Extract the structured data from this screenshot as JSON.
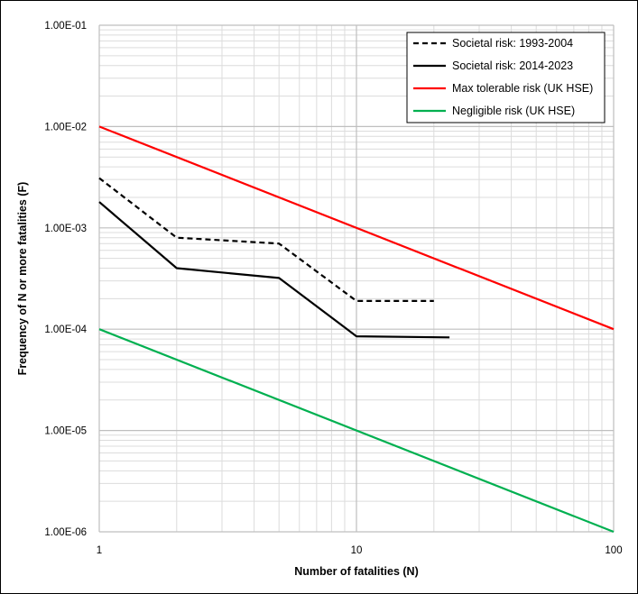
{
  "chart_data": {
    "type": "line",
    "x_scale": "log",
    "y_scale": "log",
    "xlim": [
      1,
      100
    ],
    "ylim": [
      1e-06,
      0.1
    ],
    "xlabel": "Number of fatalities (N)",
    "ylabel": "Frequency of N or more fatalities (F)",
    "grid": true,
    "legend_position": "top-right",
    "x_ticks": [
      1,
      10,
      100
    ],
    "x_tick_labels": [
      "1",
      "10",
      "100"
    ],
    "y_ticks": [
      0.1,
      0.01,
      0.001,
      0.0001,
      1e-05,
      1e-06
    ],
    "y_tick_labels": [
      "1.00E-01",
      "1.00E-02",
      "1.00E-03",
      "1.00E-04",
      "1.00E-05",
      "1.00E-06"
    ],
    "series": [
      {
        "name": "Societal risk: 1993-2004",
        "color": "#000000",
        "dash": "dashed",
        "x": [
          1,
          2,
          5,
          10,
          20
        ],
        "y": [
          0.0031,
          0.0008,
          0.0007,
          0.00019,
          0.00019
        ]
      },
      {
        "name": "Societal risk: 2014-2023",
        "color": "#000000",
        "dash": "solid",
        "x": [
          1,
          2,
          5,
          10,
          23
        ],
        "y": [
          0.0018,
          0.0004,
          0.00032,
          8.5e-05,
          8.3e-05
        ]
      },
      {
        "name": "Max tolerable risk (UK HSE)",
        "color": "#ff0000",
        "dash": "solid",
        "x": [
          1,
          100
        ],
        "y": [
          0.01,
          0.0001
        ]
      },
      {
        "name": "Negligible risk (UK HSE)",
        "color": "#00b050",
        "dash": "solid",
        "x": [
          1,
          100
        ],
        "y": [
          0.0001,
          1e-06
        ]
      }
    ]
  }
}
